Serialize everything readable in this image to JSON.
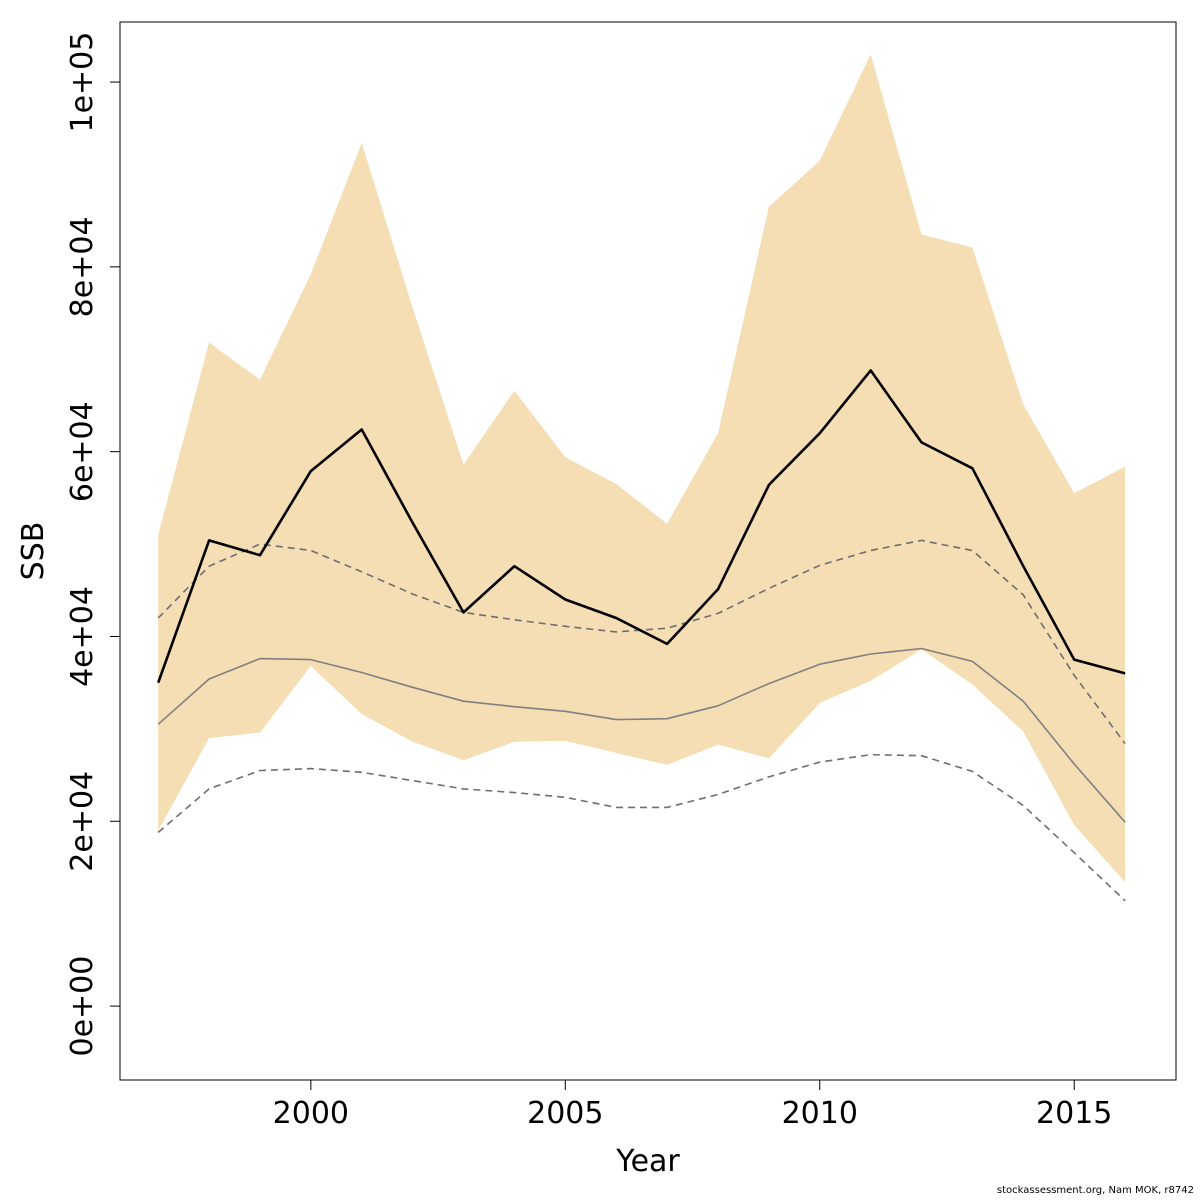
{
  "chart_data": {
    "type": "line",
    "xlabel": "Year",
    "ylabel": "SSB",
    "xlim": [
      1996.25,
      2017.0
    ],
    "ylim": [
      -8000,
      106500
    ],
    "x_ticks": [
      2000,
      2005,
      2010,
      2015
    ],
    "x_tick_labels": [
      "2000",
      "2005",
      "2010",
      "2015"
    ],
    "y_ticks": [
      0,
      20000,
      40000,
      60000,
      80000,
      100000
    ],
    "y_tick_labels": [
      "0e+00",
      "2e+04",
      "4e+04",
      "6e+04",
      "8e+04",
      "1e+05"
    ],
    "grid": false,
    "legend": "none",
    "x": [
      1997,
      1998,
      1999,
      2000,
      2001,
      2002,
      2003,
      2004,
      2005,
      2006,
      2007,
      2008,
      2009,
      2010,
      2011,
      2012,
      2013,
      2014,
      2015,
      2016
    ],
    "band": {
      "upper": [
        51000,
        71800,
        67800,
        79200,
        93400,
        75600,
        58600,
        66600,
        59400,
        56500,
        52200,
        62000,
        86500,
        91500,
        103000,
        83500,
        82100,
        65100,
        55500,
        58400
      ],
      "lower": [
        19000,
        29000,
        29600,
        36800,
        31600,
        28600,
        26600,
        28600,
        28700,
        27400,
        26100,
        28300,
        26800,
        32800,
        35200,
        38600,
        34800,
        29700,
        19600,
        13400
      ],
      "color": "#f5deb3"
    },
    "series": [
      {
        "values": [
          35000,
          50400,
          48800,
          57900,
          62400,
          52300,
          42600,
          47600,
          44000,
          42000,
          39200,
          45100,
          56400,
          62000,
          68800,
          61000,
          58200,
          47600,
          37500,
          36000
        ],
        "color": "#000000",
        "style": "solid",
        "width": 2.6
      },
      {
        "values": [
          30500,
          35400,
          37600,
          37500,
          36100,
          34500,
          33000,
          32400,
          31900,
          31000,
          31100,
          32500,
          34900,
          37000,
          38100,
          38700,
          37300,
          33000,
          26200,
          19900
        ],
        "color": "#808080",
        "style": "solid",
        "width": 1.6
      },
      {
        "values": [
          42000,
          47600,
          50000,
          49300,
          47000,
          44600,
          42600,
          41800,
          41100,
          40500,
          40900,
          42500,
          45200,
          47700,
          49300,
          50400,
          49300,
          44500,
          35800,
          28400
        ],
        "color": "#6e6e6e",
        "style": "dashed",
        "width": 1.6
      },
      {
        "values": [
          18800,
          23500,
          25500,
          25700,
          25300,
          24400,
          23500,
          23100,
          22600,
          21500,
          21500,
          22900,
          24800,
          26400,
          27200,
          27100,
          25400,
          21700,
          16600,
          11400
        ],
        "color": "#6e6e6e",
        "style": "dashed",
        "width": 1.6
      }
    ]
  },
  "footnote": "stockassessment.org, Nam  MOK, r8742"
}
